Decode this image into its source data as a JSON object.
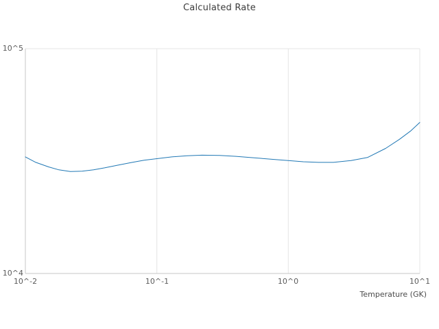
{
  "chart_data": {
    "type": "line",
    "title": "Calculated Rate",
    "xlabel": "Temperature (GK)",
    "ylabel": "",
    "x_scale": "log",
    "y_scale": "log",
    "xlim": [
      0.01,
      10
    ],
    "ylim": [
      10000,
      100000
    ],
    "grid": true,
    "legend": "none",
    "x_tick_labels": [
      "10^-2",
      "10^-1",
      "10^0",
      "10^1"
    ],
    "x_tick_values": [
      0.01,
      0.1,
      1,
      10
    ],
    "y_tick_labels": [
      "10^4",
      "10^5"
    ],
    "y_tick_values": [
      10000,
      100000
    ],
    "series": [
      {
        "name": "calculated-rate",
        "x": [
          0.01,
          0.012,
          0.015,
          0.018,
          0.022,
          0.027,
          0.033,
          0.04,
          0.05,
          0.065,
          0.08,
          0.1,
          0.13,
          0.17,
          0.22,
          0.3,
          0.4,
          0.55,
          0.75,
          1.0,
          1.3,
          1.7,
          2.2,
          3.0,
          4.0,
          5.5,
          7.0,
          8.5,
          10.0
        ],
        "y": [
          33000,
          31200,
          29800,
          28900,
          28400,
          28500,
          28900,
          29500,
          30300,
          31200,
          31900,
          32400,
          33000,
          33400,
          33600,
          33500,
          33200,
          32700,
          32200,
          31800,
          31400,
          31200,
          31200,
          31800,
          32800,
          36000,
          39500,
          43000,
          47000
        ]
      }
    ],
    "line_color": "#1f77b4",
    "grid_color": "#e5e5e5",
    "axis_color": "#c7c7c7"
  }
}
